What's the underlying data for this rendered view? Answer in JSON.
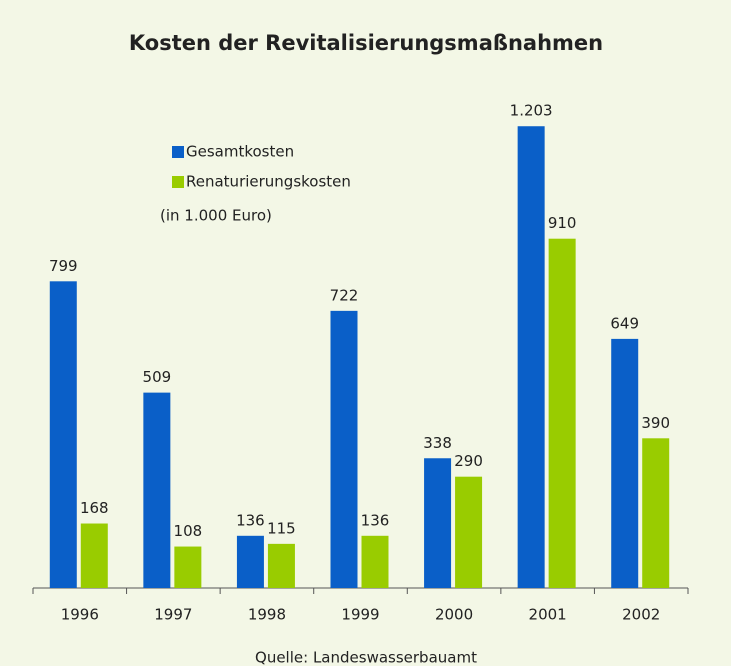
{
  "chart_data": {
    "type": "bar",
    "title": "Kosten der Revitalisierungsmaßnahmen",
    "annotation": "(in 1.000 Euro)",
    "source": "Quelle: Landeswasserbauamt",
    "categories": [
      "1996",
      "1997",
      "1998",
      "1999",
      "2000",
      "2001",
      "2002"
    ],
    "series": [
      {
        "name": "Gesamtkosten",
        "color": "#0a5fc8",
        "values": [
          799,
          509,
          136,
          722,
          338,
          1203,
          649
        ],
        "value_labels": [
          "799",
          "509",
          "136",
          "722",
          "338",
          "1.203",
          "649"
        ]
      },
      {
        "name": "Renaturierungskosten",
        "color": "#99cc00",
        "values": [
          168,
          108,
          115,
          136,
          290,
          910,
          390
        ],
        "value_labels": [
          "168",
          "108",
          "115",
          "136",
          "290",
          "910",
          "390"
        ]
      }
    ],
    "ylim": [
      0,
      1300
    ]
  }
}
